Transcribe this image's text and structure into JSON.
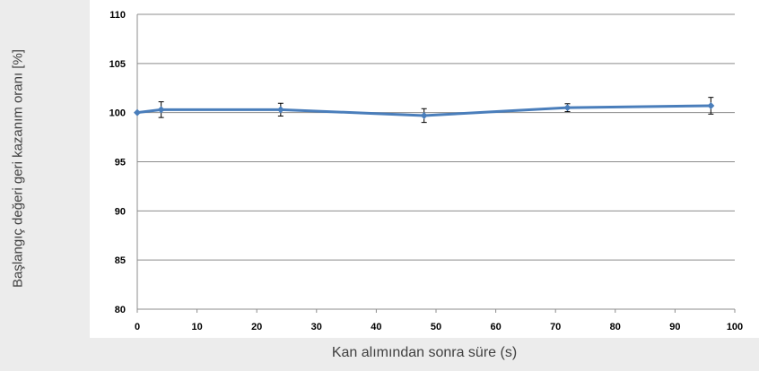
{
  "chart_data": {
    "type": "line",
    "title": "",
    "xlabel": "Kan alımından sonra süre (s)",
    "ylabel": "Başlangıç değeri geri kazanım oranı [%]",
    "xlim": [
      0,
      100
    ],
    "ylim": [
      80,
      110
    ],
    "x_ticks": [
      0,
      10,
      20,
      30,
      40,
      50,
      60,
      70,
      80,
      90,
      100
    ],
    "y_ticks": [
      80,
      85,
      90,
      95,
      100,
      105,
      110
    ],
    "grid": "horizontal",
    "legend": "none",
    "series": [
      {
        "color": "#4a7ebb",
        "x": [
          0,
          4,
          24,
          48,
          72,
          96
        ],
        "y": [
          100,
          100.3,
          100.3,
          99.7,
          100.5,
          100.7
        ],
        "error": [
          0,
          0.8,
          0.65,
          0.7,
          0.4,
          0.85
        ]
      }
    ]
  }
}
